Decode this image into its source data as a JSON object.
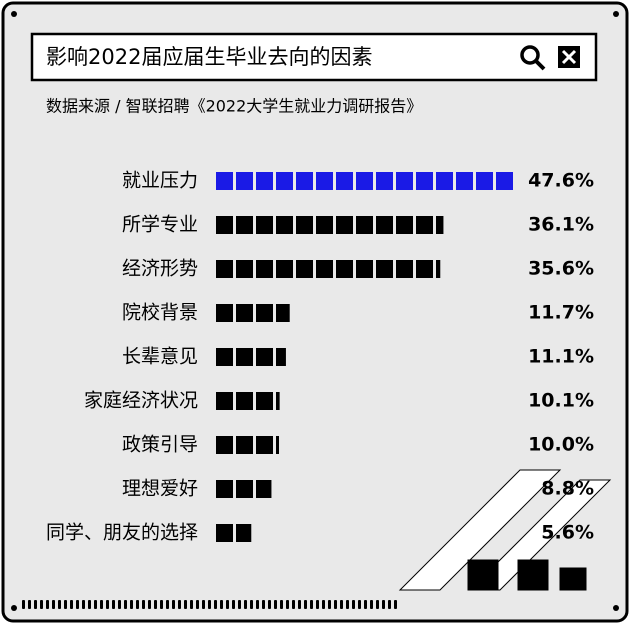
{
  "chart_data": {
    "type": "bar",
    "orientation": "horizontal",
    "title": "影响2022届应届生毕业去向的因素",
    "subtitle": "数据来源 / 智联招聘《2022大学生就业力调研报告》",
    "categories": [
      "就业压力",
      "所学专业",
      "经济形势",
      "院校背景",
      "长辈意见",
      "家庭经济状况",
      "政策引导",
      "理想爱好",
      "同学、朋友的选择"
    ],
    "values": [
      47.6,
      36.1,
      35.6,
      11.7,
      11.1,
      10.1,
      10.0,
      8.8,
      5.6
    ],
    "value_labels": [
      "47.6%",
      "36.1%",
      "35.6%",
      "11.7%",
      "11.1%",
      "10.1%",
      "10.0%",
      "8.8%",
      "5.6%"
    ],
    "colors": [
      "#1a1ae6",
      "#000000",
      "#000000",
      "#000000",
      "#000000",
      "#000000",
      "#000000",
      "#000000",
      "#000000"
    ]
  }
}
